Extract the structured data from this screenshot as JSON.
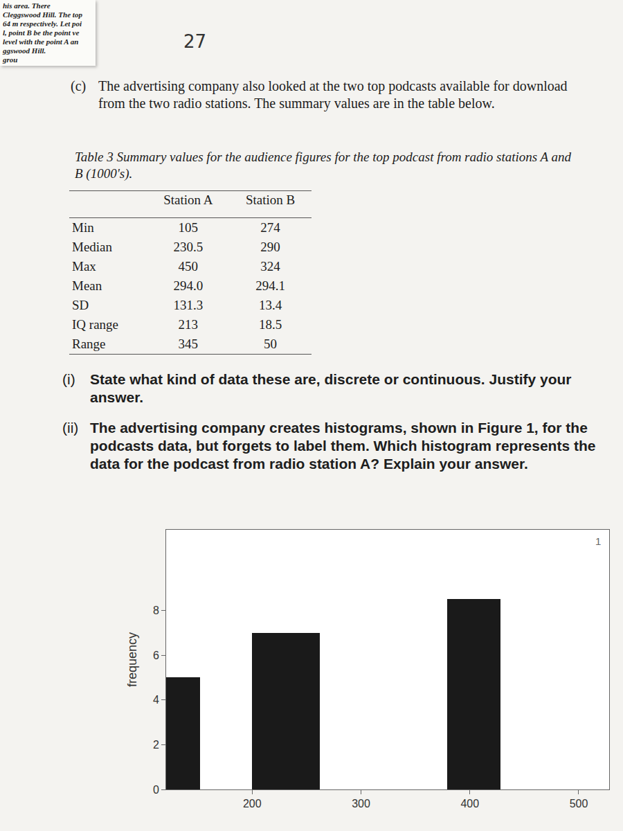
{
  "fragment": [
    "his area. There",
    "Cleggswood Hill. The top",
    "64 m respectively. Let poi",
    "l, point B be the point ve",
    "level with the point A an",
    "ggswood Hill.",
    "grou"
  ],
  "page_number": "27",
  "part": {
    "label": "(c)",
    "text": "The advertising company also looked at the two top podcasts available for download from the two radio stations. The summary values are in the table below."
  },
  "table": {
    "caption_label": "Table 3",
    "caption": "Summary values for the audience figures for the top podcast from radio stations A and B (1000's).",
    "header": [
      "Station A",
      "Station B"
    ],
    "rows": [
      [
        "Min",
        "105",
        "274"
      ],
      [
        "Median",
        "230.5",
        "290"
      ],
      [
        "Max",
        "450",
        "324"
      ],
      [
        "Mean",
        "294.0",
        "294.1"
      ],
      [
        "SD",
        "131.3",
        "13.4"
      ],
      [
        "IQ range",
        "213",
        "18.5"
      ],
      [
        "Range",
        "345",
        "50"
      ]
    ]
  },
  "questions": [
    {
      "label": "(i)",
      "text": "State what kind of data these are, discrete or continuous. Justify your answer."
    },
    {
      "label": "(ii)",
      "text": "The advertising company creates histograms, shown in Figure 1, for the podcasts data, but forgets to label them. Which histogram represents the data for the podcast from radio station A? Explain your answer."
    }
  ],
  "chart_data": {
    "type": "histogram",
    "bins": [
      121,
      152,
      200,
      262,
      379,
      428
    ],
    "counts": [
      5,
      0,
      7,
      0,
      8.5
    ],
    "color": "#1a1a1a",
    "ylabel": "frequency",
    "annotation": "1",
    "xlim": [
      121,
      528
    ],
    "ylim": [
      0,
      11.6
    ],
    "xticks": [
      200,
      300,
      400,
      500
    ],
    "yticks": [
      0,
      2,
      4,
      6,
      8
    ]
  }
}
